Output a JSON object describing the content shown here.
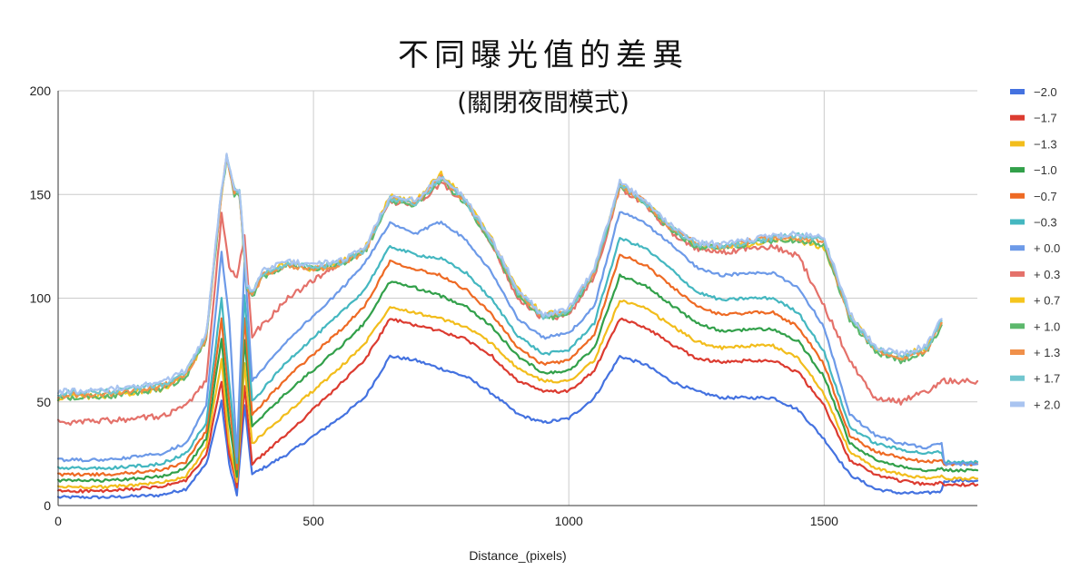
{
  "chart_data": {
    "type": "line",
    "title": "不同曝光值的差異",
    "subtitle": "(關閉夜間模式)",
    "xlabel": "Distance_(pixels)",
    "ylabel": "",
    "xlim": [
      0,
      1800
    ],
    "ylim": [
      0,
      200
    ],
    "xticks": [
      0,
      500,
      1000,
      1500
    ],
    "yticks": [
      0,
      50,
      100,
      150,
      200
    ],
    "xtick_labels": [
      "0",
      "500",
      "1000",
      "1500"
    ],
    "ytick_labels": [
      "0",
      "50",
      "100",
      "150",
      "200"
    ],
    "grid": true,
    "legend_position": "right",
    "x_end": 1800,
    "series": [
      {
        "name": "−2.0",
        "color": "#4472e0",
        "x": [
          0,
          100,
          200,
          250,
          290,
          320,
          335,
          350,
          365,
          380,
          450,
          550,
          600,
          650,
          700,
          750,
          800,
          850,
          900,
          950,
          1000,
          1050,
          1100,
          1150,
          1200,
          1250,
          1300,
          1350,
          1400,
          1450,
          1500,
          1550,
          1600,
          1650,
          1700,
          1730,
          1735,
          1800
        ],
        "y": [
          4,
          4,
          5,
          8,
          20,
          50,
          20,
          5,
          48,
          15,
          25,
          42,
          52,
          72,
          70,
          66,
          62,
          54,
          44,
          40,
          42,
          52,
          72,
          68,
          60,
          55,
          52,
          52,
          52,
          46,
          32,
          15,
          8,
          6,
          6,
          7,
          12,
          12
        ]
      },
      {
        "name": "−1.7",
        "color": "#dc3b30",
        "x": [
          0,
          100,
          200,
          250,
          290,
          320,
          335,
          350,
          365,
          380,
          450,
          550,
          600,
          650,
          700,
          750,
          800,
          850,
          900,
          950,
          1000,
          1050,
          1100,
          1150,
          1200,
          1250,
          1300,
          1350,
          1400,
          1450,
          1500,
          1550,
          1600,
          1650,
          1700,
          1730,
          1735,
          1800
        ],
        "y": [
          7,
          7,
          9,
          12,
          24,
          60,
          25,
          9,
          58,
          20,
          35,
          58,
          70,
          90,
          87,
          84,
          80,
          72,
          60,
          55,
          55,
          65,
          90,
          86,
          78,
          71,
          69,
          70,
          70,
          64,
          48,
          22,
          15,
          12,
          10,
          11,
          10,
          10
        ]
      },
      {
        "name": "−1.3",
        "color": "#f2bd1c",
        "x": [
          0,
          100,
          200,
          250,
          290,
          320,
          335,
          350,
          365,
          380,
          450,
          550,
          600,
          650,
          700,
          750,
          800,
          850,
          900,
          950,
          1000,
          1050,
          1100,
          1150,
          1200,
          1250,
          1300,
          1350,
          1400,
          1450,
          1500,
          1550,
          1600,
          1650,
          1700,
          1730,
          1735,
          1800
        ],
        "y": [
          9,
          9,
          11,
          14,
          28,
          70,
          30,
          11,
          68,
          30,
          45,
          66,
          78,
          96,
          93,
          90,
          86,
          78,
          66,
          60,
          60,
          70,
          99,
          95,
          87,
          79,
          76,
          77,
          77,
          71,
          54,
          26,
          18,
          15,
          13,
          14,
          13,
          13
        ]
      },
      {
        "name": "−1.0",
        "color": "#32a04a",
        "x": [
          0,
          100,
          200,
          250,
          290,
          320,
          335,
          350,
          365,
          380,
          450,
          550,
          600,
          650,
          700,
          750,
          800,
          850,
          900,
          950,
          1000,
          1050,
          1100,
          1150,
          1200,
          1250,
          1300,
          1350,
          1400,
          1450,
          1500,
          1550,
          1600,
          1650,
          1700,
          1730,
          1735,
          1800
        ],
        "y": [
          12,
          12,
          14,
          18,
          32,
          80,
          40,
          14,
          80,
          38,
          55,
          76,
          88,
          108,
          105,
          101,
          96,
          86,
          72,
          64,
          65,
          76,
          111,
          106,
          97,
          88,
          84,
          85,
          85,
          79,
          62,
          30,
          22,
          19,
          17,
          18,
          17,
          17
        ]
      },
      {
        "name": "−0.7",
        "color": "#ee6a24",
        "x": [
          0,
          100,
          200,
          250,
          290,
          320,
          335,
          350,
          365,
          380,
          450,
          550,
          600,
          650,
          700,
          750,
          800,
          850,
          900,
          950,
          1000,
          1050,
          1100,
          1150,
          1200,
          1250,
          1300,
          1350,
          1400,
          1450,
          1500,
          1550,
          1600,
          1650,
          1700,
          1730,
          1735,
          1800
        ],
        "y": [
          15,
          15,
          17,
          21,
          36,
          90,
          50,
          17,
          90,
          44,
          62,
          84,
          96,
          118,
          114,
          111,
          104,
          92,
          76,
          68,
          70,
          82,
          121,
          116,
          106,
          96,
          92,
          93,
          93,
          86,
          68,
          34,
          26,
          23,
          21,
          22,
          20,
          20
        ]
      },
      {
        "name": "−0.3",
        "color": "#44b7c0",
        "x": [
          0,
          100,
          200,
          250,
          290,
          320,
          335,
          350,
          365,
          380,
          450,
          550,
          600,
          650,
          700,
          750,
          800,
          850,
          900,
          950,
          1000,
          1050,
          1100,
          1150,
          1200,
          1250,
          1300,
          1350,
          1400,
          1450,
          1500,
          1550,
          1600,
          1650,
          1700,
          1730,
          1735,
          1800
        ],
        "y": [
          18,
          18,
          20,
          25,
          40,
          100,
          60,
          20,
          102,
          50,
          70,
          92,
          104,
          125,
          121,
          119,
          112,
          99,
          82,
          73,
          75,
          88,
          129,
          124,
          114,
          103,
          99,
          100,
          100,
          93,
          74,
          38,
          30,
          27,
          25,
          26,
          21,
          21
        ]
      },
      {
        "name": "+ 0.0",
        "color": "#6d9ae8",
        "x": [
          0,
          100,
          200,
          250,
          290,
          320,
          335,
          350,
          365,
          380,
          450,
          550,
          600,
          650,
          700,
          750,
          800,
          850,
          900,
          950,
          1000,
          1050,
          1100,
          1150,
          1200,
          1250,
          1300,
          1350,
          1400,
          1450,
          1500,
          1550,
          1600,
          1650,
          1700,
          1730,
          1735,
          1800
        ],
        "y": [
          22,
          22,
          25,
          30,
          48,
          122,
          90,
          24,
          118,
          60,
          80,
          103,
          117,
          136,
          131,
          137,
          128,
          112,
          90,
          81,
          83,
          96,
          142,
          136,
          126,
          115,
          111,
          112,
          112,
          105,
          86,
          44,
          34,
          30,
          28,
          30,
          20,
          20
        ]
      },
      {
        "name": "+ 0.3",
        "color": "#e4716a",
        "x": [
          0,
          100,
          200,
          250,
          290,
          320,
          335,
          350,
          365,
          380,
          450,
          550,
          600,
          650,
          700,
          750,
          800,
          850,
          900,
          950,
          1000,
          1050,
          1100,
          1150,
          1200,
          1250,
          1300,
          1350,
          1400,
          1450,
          1500,
          1550,
          1600,
          1650,
          1700,
          1730,
          1735,
          1800
        ],
        "y": [
          40,
          41,
          43,
          48,
          60,
          140,
          115,
          110,
          130,
          82,
          100,
          117,
          124,
          146,
          145,
          155,
          146,
          125,
          100,
          90,
          92,
          110,
          153,
          145,
          132,
          124,
          122,
          124,
          125,
          120,
          96,
          70,
          52,
          50,
          55,
          60,
          60,
          60
        ]
      },
      {
        "name": "+ 0.7",
        "color": "#f5c51e",
        "x": [
          0,
          100,
          200,
          250,
          290,
          320,
          330,
          345,
          355,
          370,
          380,
          400,
          450,
          500,
          550,
          600,
          650,
          700,
          750,
          800,
          850,
          900,
          950,
          1000,
          1050,
          1100,
          1150,
          1200,
          1250,
          1300,
          1350,
          1400,
          1450,
          1500,
          1550,
          1600,
          1650,
          1700,
          1730
        ],
        "y": [
          52,
          53,
          56,
          62,
          80,
          150,
          168,
          152,
          150,
          105,
          102,
          112,
          117,
          114,
          117,
          124,
          149,
          147,
          160,
          147,
          128,
          104,
          92,
          94,
          113,
          155,
          146,
          134,
          126,
          124,
          126,
          128,
          128,
          124,
          92,
          76,
          72,
          76,
          88
        ]
      },
      {
        "name": "+ 1.0",
        "color": "#5cb86c",
        "x": [
          0,
          100,
          200,
          250,
          290,
          320,
          330,
          345,
          355,
          370,
          380,
          400,
          450,
          500,
          550,
          600,
          650,
          700,
          750,
          800,
          850,
          900,
          950,
          1000,
          1050,
          1100,
          1150,
          1200,
          1250,
          1300,
          1350,
          1400,
          1450,
          1500,
          1550,
          1600,
          1650,
          1700,
          1730
        ],
        "y": [
          52,
          53,
          56,
          62,
          80,
          150,
          167,
          150,
          150,
          104,
          100,
          110,
          116,
          114,
          116,
          122,
          147,
          145,
          157,
          145,
          126,
          102,
          90,
          93,
          112,
          154,
          145,
          133,
          125,
          124,
          126,
          128,
          128,
          126,
          90,
          74,
          70,
          74,
          87
        ]
      },
      {
        "name": "+ 1.3",
        "color": "#f0904a",
        "x": [
          0,
          100,
          200,
          250,
          290,
          320,
          330,
          345,
          355,
          370,
          380,
          400,
          450,
          500,
          550,
          600,
          650,
          700,
          750,
          800,
          850,
          900,
          950,
          1000,
          1050,
          1100,
          1150,
          1200,
          1250,
          1300,
          1350,
          1400,
          1450,
          1500,
          1550,
          1600,
          1650,
          1700,
          1730
        ],
        "y": [
          53,
          54,
          57,
          63,
          81,
          151,
          168,
          151,
          151,
          105,
          101,
          111,
          116,
          114,
          116,
          122,
          148,
          146,
          158,
          146,
          127,
          103,
          91,
          94,
          113,
          155,
          146,
          134,
          126,
          125,
          127,
          129,
          129,
          127,
          91,
          75,
          71,
          75,
          88
        ]
      },
      {
        "name": "+ 1.7",
        "color": "#72c6cf",
        "x": [
          0,
          100,
          200,
          250,
          290,
          320,
          330,
          345,
          355,
          370,
          380,
          400,
          450,
          500,
          550,
          600,
          650,
          700,
          750,
          800,
          850,
          900,
          950,
          1000,
          1050,
          1100,
          1150,
          1200,
          1250,
          1300,
          1350,
          1400,
          1450,
          1500,
          1550,
          1600,
          1650,
          1700,
          1730
        ],
        "y": [
          54,
          55,
          58,
          64,
          82,
          152,
          168,
          152,
          152,
          106,
          102,
          112,
          117,
          115,
          117,
          123,
          148,
          146,
          158,
          146,
          127,
          103,
          91,
          94,
          113,
          155,
          146,
          134,
          126,
          125,
          127,
          129,
          130,
          128,
          92,
          76,
          72,
          76,
          89
        ]
      },
      {
        "name": "+ 2.0",
        "color": "#a9c4f0",
        "x": [
          0,
          100,
          200,
          250,
          290,
          320,
          330,
          345,
          355,
          370,
          380,
          400,
          450,
          500,
          550,
          600,
          650,
          700,
          750,
          800,
          850,
          900,
          950,
          1000,
          1050,
          1100,
          1150,
          1200,
          1250,
          1300,
          1350,
          1400,
          1450,
          1500,
          1550,
          1600,
          1650,
          1700,
          1730
        ],
        "y": [
          55,
          56,
          59,
          65,
          83,
          153,
          169,
          153,
          153,
          107,
          103,
          113,
          118,
          116,
          118,
          124,
          149,
          147,
          159,
          147,
          128,
          104,
          92,
          95,
          114,
          156,
          147,
          135,
          127,
          126,
          128,
          130,
          131,
          129,
          93,
          77,
          73,
          77,
          90
        ]
      }
    ]
  }
}
